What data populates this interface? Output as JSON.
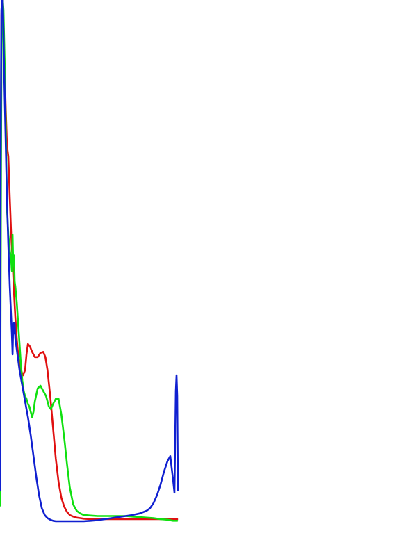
{
  "chart_data": {
    "type": "line",
    "title": "",
    "xlabel": "",
    "ylabel": "",
    "grid": false,
    "legend": "none",
    "xlim": [
      0,
      255
    ],
    "ylim": [
      0,
      100
    ],
    "series": [
      {
        "color": "#e01010",
        "x": [
          0,
          1,
          2,
          3,
          4,
          5,
          6,
          8,
          10,
          12,
          14,
          16,
          18,
          20,
          22,
          24,
          26,
          28,
          30,
          33,
          36,
          38,
          40,
          43,
          46,
          50,
          54,
          58,
          62,
          65,
          68,
          72,
          76,
          80,
          84,
          88,
          92,
          96,
          100,
          105,
          110,
          115,
          120,
          130,
          140,
          150,
          160,
          170,
          180,
          190,
          200,
          210,
          220,
          230,
          240,
          248,
          254
        ],
        "y": [
          5,
          60,
          97,
          100,
          100,
          96,
          90,
          80,
          72,
          70,
          62,
          55,
          50,
          44,
          39,
          35,
          32,
          30,
          29,
          28,
          29,
          32,
          34,
          33.5,
          32.5,
          31.5,
          31.5,
          32.3,
          32.5,
          31.5,
          29,
          24,
          18,
          12,
          7.5,
          4.5,
          2.8,
          1.8,
          1.2,
          0.9,
          0.7,
          0.6,
          0.5,
          0.4,
          0.4,
          0.4,
          0.4,
          0.4,
          0.4,
          0.4,
          0.4,
          0.4,
          0.4,
          0.4,
          0.4,
          0.4,
          0.4
        ]
      },
      {
        "color": "#10e010",
        "x": [
          0,
          1,
          2,
          3,
          4,
          5,
          6,
          7,
          8,
          9,
          10,
          12,
          14,
          16,
          17,
          18,
          19,
          20,
          21,
          22,
          24,
          26,
          28,
          30,
          32,
          34,
          36,
          38,
          40,
          42,
          44,
          46,
          48,
          50,
          54,
          58,
          62,
          66,
          70,
          73,
          76,
          80,
          84,
          88,
          92,
          96,
          100,
          105,
          110,
          115,
          120,
          130,
          140,
          150,
          160,
          170,
          180,
          190,
          200,
          210,
          220,
          230,
          240,
          248,
          254
        ],
        "y": [
          3,
          48,
          88,
          96,
          100,
          98,
          92,
          86,
          78,
          70,
          60,
          55,
          52,
          50,
          48,
          55,
          49,
          51,
          46,
          45,
          42,
          38,
          34,
          30,
          27,
          25,
          24,
          23.5,
          22.5,
          22,
          21,
          20,
          21,
          23,
          25.5,
          26,
          25,
          24,
          22,
          21.5,
          22.5,
          23.5,
          23.5,
          20.5,
          16,
          11,
          6.5,
          3.2,
          2,
          1.5,
          1.2,
          1.1,
          1,
          1,
          1,
          1,
          1,
          0.9,
          0.8,
          0.7,
          0.6,
          0.4,
          0.3,
          0.1,
          0.1
        ]
      },
      {
        "color": "#1020d0",
        "x": [
          0,
          1,
          2,
          3,
          4,
          5,
          6,
          8,
          10,
          12,
          14,
          16,
          17,
          18,
          19,
          20,
          21,
          22,
          23,
          24,
          26,
          28,
          30,
          32,
          34,
          36,
          38,
          40,
          44,
          48,
          52,
          56,
          60,
          64,
          68,
          72,
          76,
          80,
          88,
          96,
          104,
          112,
          120,
          130,
          140,
          150,
          160,
          170,
          180,
          190,
          200,
          210,
          215,
          220,
          225,
          230,
          235,
          240,
          244,
          248,
          250,
          252,
          253,
          254,
          255
        ],
        "y": [
          6,
          70,
          98,
          100,
          100,
          94,
          86,
          74,
          62,
          53,
          45,
          39,
          36,
          32,
          38,
          36,
          38,
          35,
          34,
          33,
          31,
          29,
          27.5,
          26,
          24.5,
          23,
          21.5,
          20,
          16.5,
          12.5,
          8.5,
          5,
          2.5,
          1.2,
          0.6,
          0.3,
          0.1,
          0,
          0,
          0,
          0,
          0,
          0,
          0.1,
          0.2,
          0.4,
          0.6,
          0.8,
          1,
          1.2,
          1.5,
          2,
          2.5,
          3.5,
          5,
          7,
          9.5,
          11.5,
          12.5,
          8,
          5.5,
          25,
          28,
          24,
          6
        ]
      }
    ]
  }
}
